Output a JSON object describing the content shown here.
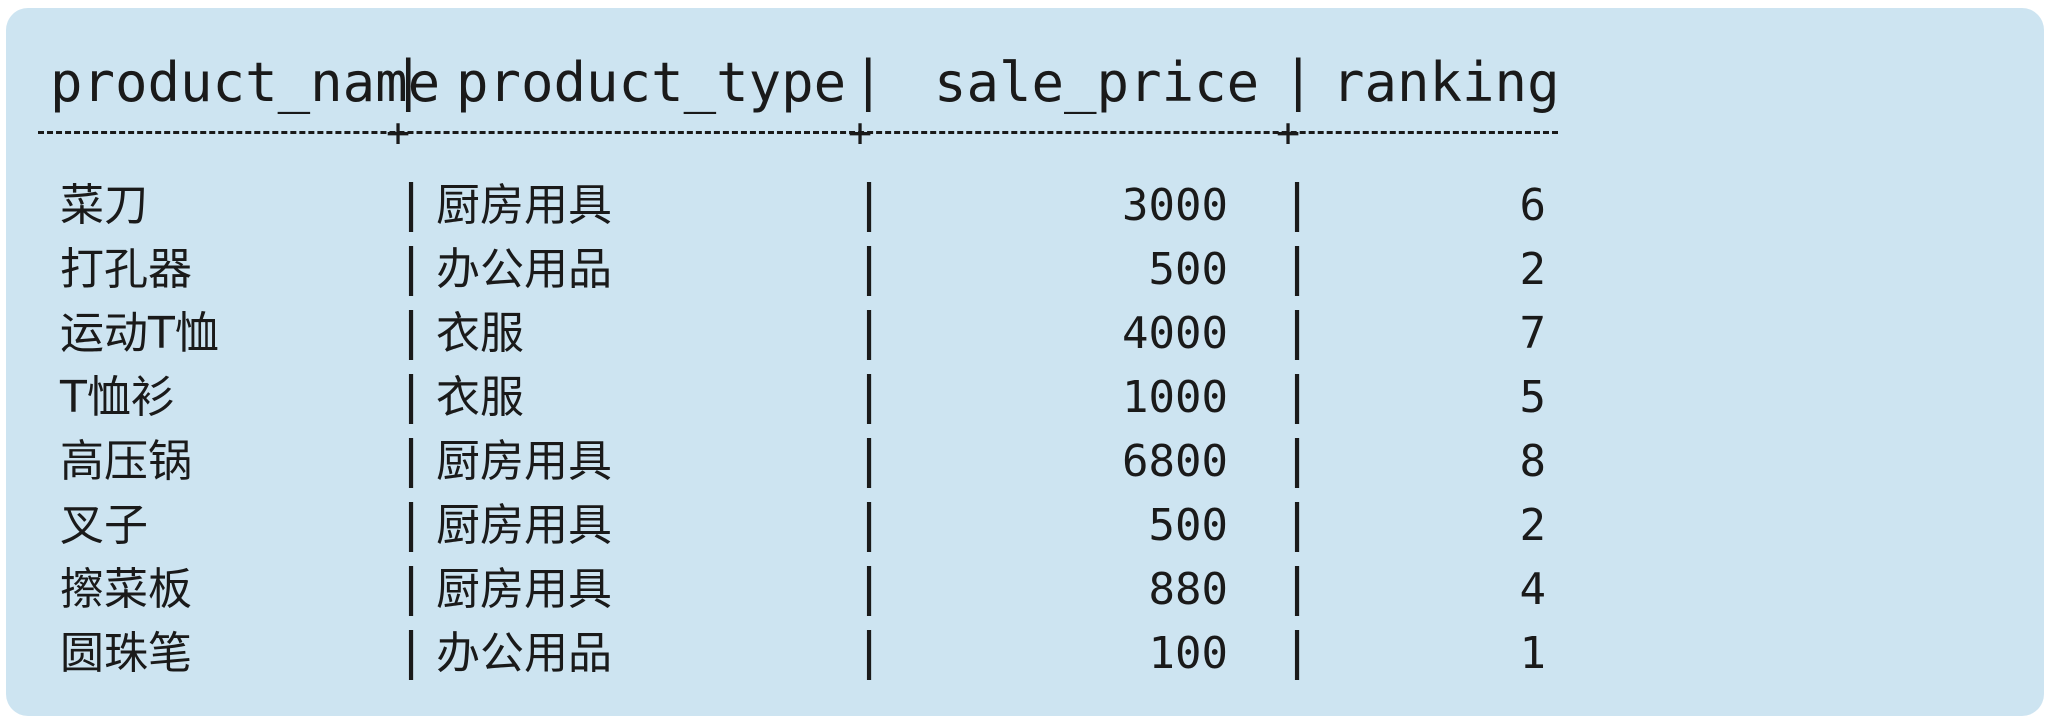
{
  "table": {
    "columns": [
      "product_name",
      "product_type",
      "sale_price",
      "ranking"
    ],
    "separator_plus": "+",
    "bar": "|",
    "rows": [
      {
        "product_name": "菜刀",
        "product_type": "厨房用具",
        "sale_price": "3000",
        "ranking": "6"
      },
      {
        "product_name": "打孔器",
        "product_type": "办公用品",
        "sale_price": "500",
        "ranking": "2"
      },
      {
        "product_name": "运动T恤",
        "product_type": "衣服",
        "sale_price": "4000",
        "ranking": "7"
      },
      {
        "product_name": "T恤衫",
        "product_type": "衣服",
        "sale_price": "1000",
        "ranking": "5"
      },
      {
        "product_name": "高压锅",
        "product_type": "厨房用具",
        "sale_price": "6800",
        "ranking": "8"
      },
      {
        "product_name": "叉子",
        "product_type": "厨房用具",
        "sale_price": "500",
        "ranking": "2"
      },
      {
        "product_name": "擦菜板",
        "product_type": "厨房用具",
        "sale_price": "880",
        "ranking": "4"
      },
      {
        "product_name": "圆珠笔",
        "product_type": "办公用品",
        "sale_price": "100",
        "ranking": "1"
      }
    ]
  }
}
